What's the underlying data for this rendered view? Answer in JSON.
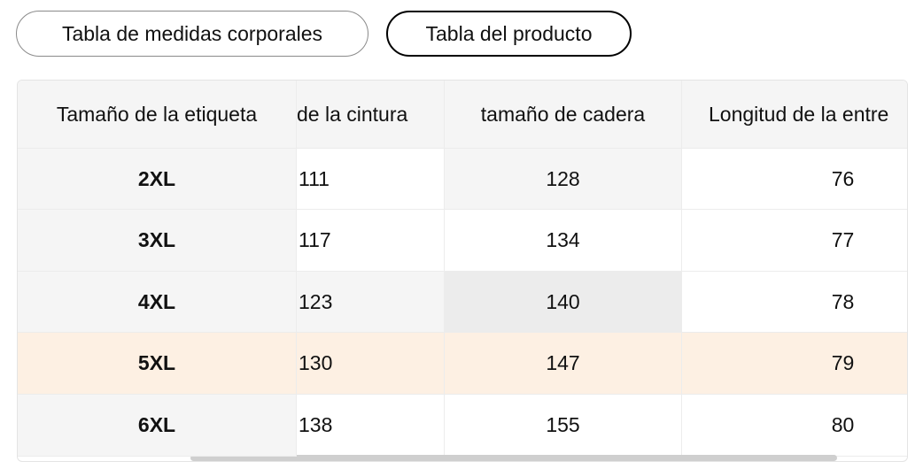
{
  "tabs": [
    "Tabla de medidas corporales",
    "Tabla del producto"
  ],
  "table": {
    "header": [
      "Tamaño de la etiqueta",
      "de la cintura",
      "tamaño de cadera",
      "Longitud de la entre"
    ],
    "rows": [
      [
        "2XL",
        "111",
        "128",
        "76"
      ],
      [
        "3XL",
        "117",
        "134",
        "77"
      ],
      [
        "4XL",
        "123",
        "140",
        "78"
      ],
      [
        "5XL",
        "130",
        "147",
        "79"
      ],
      [
        "6XL",
        "138",
        "155",
        "80"
      ]
    ]
  }
}
